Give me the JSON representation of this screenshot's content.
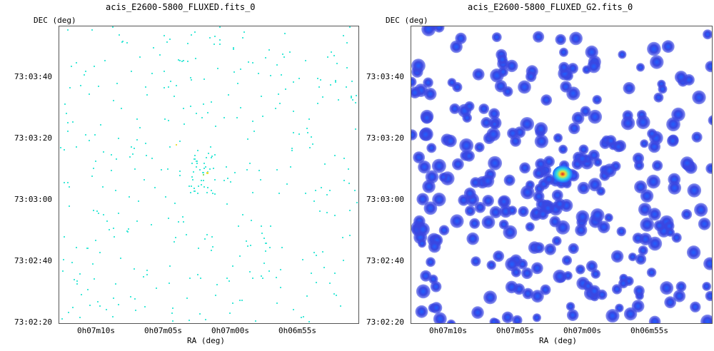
{
  "panels": [
    {
      "title": "acis_E2600-5800_FLUXED.fits_0",
      "ylabel": "DEC (deg)",
      "xlabel": "RA (deg)",
      "yticks": [
        "73:03:40",
        "73:03:20",
        "73:03:00",
        "73:02:40",
        "73:02:20"
      ],
      "xticks": [
        "0h07m10s",
        "0h07m05s",
        "0h07m00s",
        "0h06m55s"
      ],
      "colors": {
        "pixel": "#40e8d8",
        "peak": "#e8e040",
        "bright": "#80e060"
      }
    },
    {
      "title": "acis_E2600-5800_FLUXED_G2.fits_0",
      "ylabel": "DEC (deg)",
      "xlabel": "RA (deg)",
      "yticks": [
        "73:03:40",
        "73:03:20",
        "73:03:00",
        "73:02:40",
        "73:02:20"
      ],
      "xticks": [
        "0h07m10s",
        "0h07m05s",
        "0h07m00s",
        "0h06m55s"
      ],
      "colors": {
        "low": "#3a46e0",
        "mid": "#2060ff",
        "core_outer": "#30e0e0",
        "core_mid": "#f0e030",
        "core_inner": "#e02020"
      }
    }
  ]
}
